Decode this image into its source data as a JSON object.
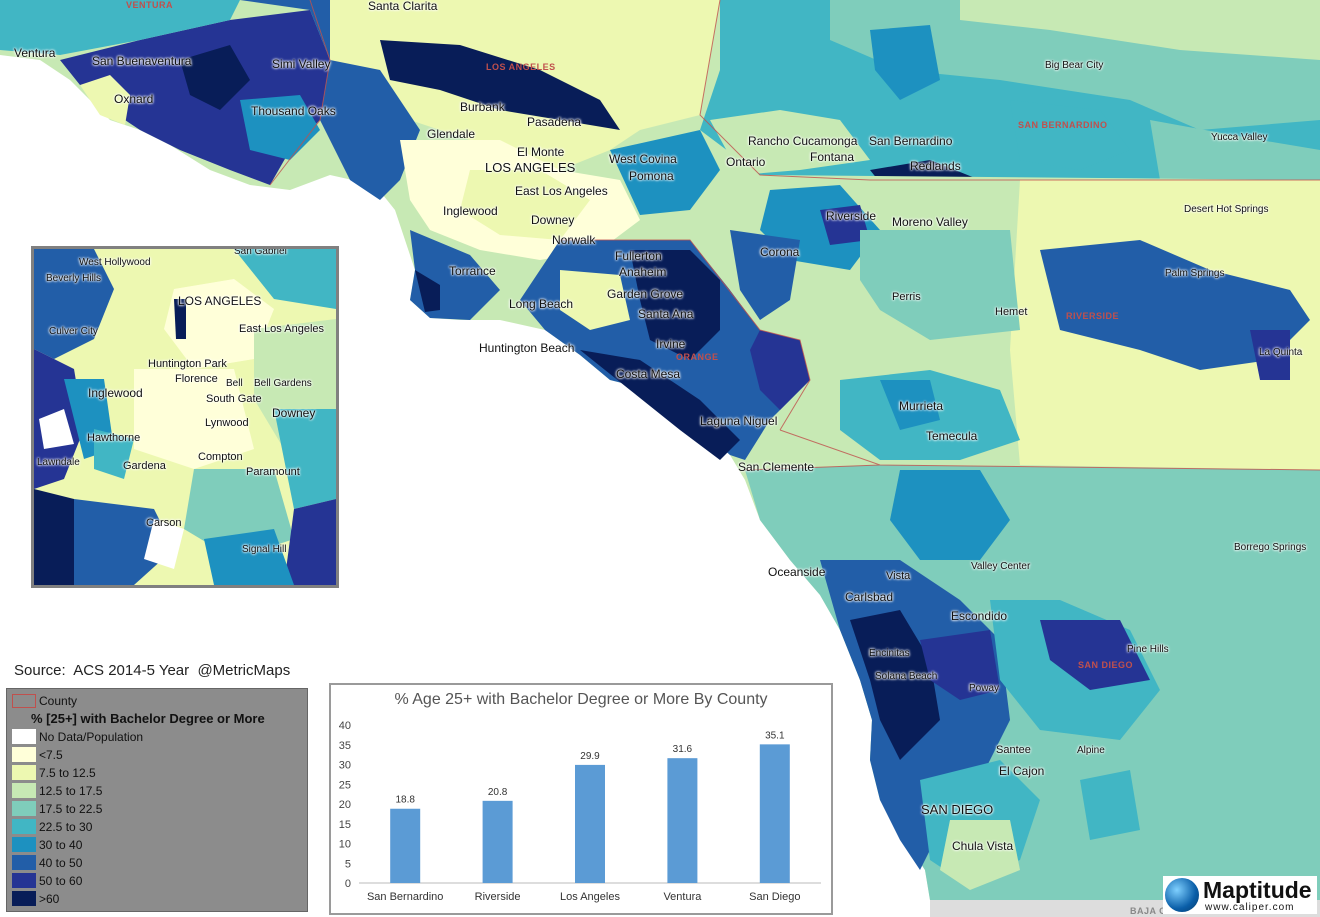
{
  "map": {
    "cities": [
      {
        "name": "Ventura",
        "big": false
      },
      {
        "name": "San Buenaventura",
        "big": false
      },
      {
        "name": "Oxnard",
        "big": false
      },
      {
        "name": "Simi Valley",
        "big": false
      },
      {
        "name": "Thousand Oaks",
        "big": false
      },
      {
        "name": "Santa Clarita",
        "big": false
      },
      {
        "name": "Burbank",
        "big": false
      },
      {
        "name": "Glendale",
        "big": false
      },
      {
        "name": "Pasadena",
        "big": false
      },
      {
        "name": "El Monte",
        "big": false
      },
      {
        "name": "LOS ANGELES",
        "big": true
      },
      {
        "name": "East Los Angeles",
        "big": false
      },
      {
        "name": "West Covina",
        "big": false
      },
      {
        "name": "Pomona",
        "big": false
      },
      {
        "name": "Inglewood",
        "big": false
      },
      {
        "name": "Downey",
        "big": false
      },
      {
        "name": "Norwalk",
        "big": false
      },
      {
        "name": "Torrance",
        "big": false
      },
      {
        "name": "Long Beach",
        "big": false
      },
      {
        "name": "Fullerton",
        "big": false
      },
      {
        "name": "Anaheim",
        "big": false
      },
      {
        "name": "Garden Grove",
        "big": false
      },
      {
        "name": "Santa Ana",
        "big": false
      },
      {
        "name": "Huntington Beach",
        "big": false
      },
      {
        "name": "Irvine",
        "big": false
      },
      {
        "name": "Costa Mesa",
        "big": false
      },
      {
        "name": "Laguna Niguel",
        "big": false
      },
      {
        "name": "San Clemente",
        "big": false
      },
      {
        "name": "Rancho Cucamonga",
        "big": false
      },
      {
        "name": "Ontario",
        "big": false
      },
      {
        "name": "Fontana",
        "big": false
      },
      {
        "name": "San Bernardino",
        "big": false
      },
      {
        "name": "Redlands",
        "big": false
      },
      {
        "name": "Big Bear City",
        "big": false
      },
      {
        "name": "Yucca Valley",
        "big": false
      },
      {
        "name": "Desert Hot Springs",
        "big": false
      },
      {
        "name": "Palm Springs",
        "big": false
      },
      {
        "name": "La Quinta",
        "big": false
      },
      {
        "name": "Riverside",
        "big": false
      },
      {
        "name": "Moreno Valley",
        "big": false
      },
      {
        "name": "Corona",
        "big": false
      },
      {
        "name": "Perris",
        "big": false
      },
      {
        "name": "Hemet",
        "big": false
      },
      {
        "name": "Murrieta",
        "big": false
      },
      {
        "name": "Temecula",
        "big": false
      },
      {
        "name": "Oceanside",
        "big": false
      },
      {
        "name": "Vista",
        "big": false
      },
      {
        "name": "Carlsbad",
        "big": false
      },
      {
        "name": "Valley Center",
        "big": false
      },
      {
        "name": "Escondido",
        "big": false
      },
      {
        "name": "Encinitas",
        "big": false
      },
      {
        "name": "Solana Beach",
        "big": false
      },
      {
        "name": "Poway",
        "big": false
      },
      {
        "name": "Pine Hills",
        "big": false
      },
      {
        "name": "Santee",
        "big": false
      },
      {
        "name": "Alpine",
        "big": false
      },
      {
        "name": "El Cajon",
        "big": false
      },
      {
        "name": "SAN DIEGO",
        "big": true
      },
      {
        "name": "Chula Vista",
        "big": false
      },
      {
        "name": "Borrego Springs",
        "big": false
      }
    ],
    "counties": [
      "VENTURA",
      "LOS ANGELES",
      "SAN BERNARDINO",
      "RIVERSIDE",
      "ORANGE",
      "SAN DIEGO",
      "BAJA C..."
    ]
  },
  "inset": {
    "cities": [
      "San Gabriel",
      "West Hollywood",
      "Beverly Hills",
      "LOS ANGELES",
      "East Los Angeles",
      "Culver City",
      "Huntington Park",
      "Florence",
      "Bell",
      "Bell Gardens",
      "Inglewood",
      "South Gate",
      "Downey",
      "Lynwood",
      "Hawthorne",
      "Compton",
      "Lawndale",
      "Gardena",
      "Paramount",
      "Carson",
      "Signal Hill"
    ]
  },
  "source": "Source:  ACS 2014-5 Year  @MetricMaps",
  "legend": {
    "county_label": "County",
    "title": "% [25+] with Bachelor Degree or More",
    "classes": [
      {
        "label": "No Data/Population",
        "color": "#ffffff"
      },
      {
        "label": "<7.5",
        "color": "#ffffd9"
      },
      {
        "label": "7.5 to 12.5",
        "color": "#edf8b1"
      },
      {
        "label": "12.5 to 17.5",
        "color": "#c7e9b4"
      },
      {
        "label": "17.5 to 22.5",
        "color": "#7fcdbb"
      },
      {
        "label": "22.5 to 30",
        "color": "#41b6c4"
      },
      {
        "label": "30 to 40",
        "color": "#1d91c0"
      },
      {
        "label": "40 to 50",
        "color": "#225ea8"
      },
      {
        "label": "50 to 60",
        "color": "#253494"
      },
      {
        "label": ">60",
        "color": "#081d58"
      }
    ]
  },
  "chart_data": {
    "type": "bar",
    "title": "% Age 25+ with Bachelor Degree or More By County",
    "categories": [
      "San Bernardino",
      "Riverside",
      "Los Angeles",
      "Ventura",
      "San Diego"
    ],
    "values": [
      18.8,
      20.8,
      29.9,
      31.6,
      35.1
    ],
    "ylim": [
      0,
      40
    ],
    "yticks": [
      0,
      5,
      10,
      15,
      20,
      25,
      30,
      35,
      40
    ],
    "bar_color": "#5b9bd5",
    "grid": false
  },
  "logo": {
    "name": "Maptitude",
    "url": "www.caliper.com"
  }
}
